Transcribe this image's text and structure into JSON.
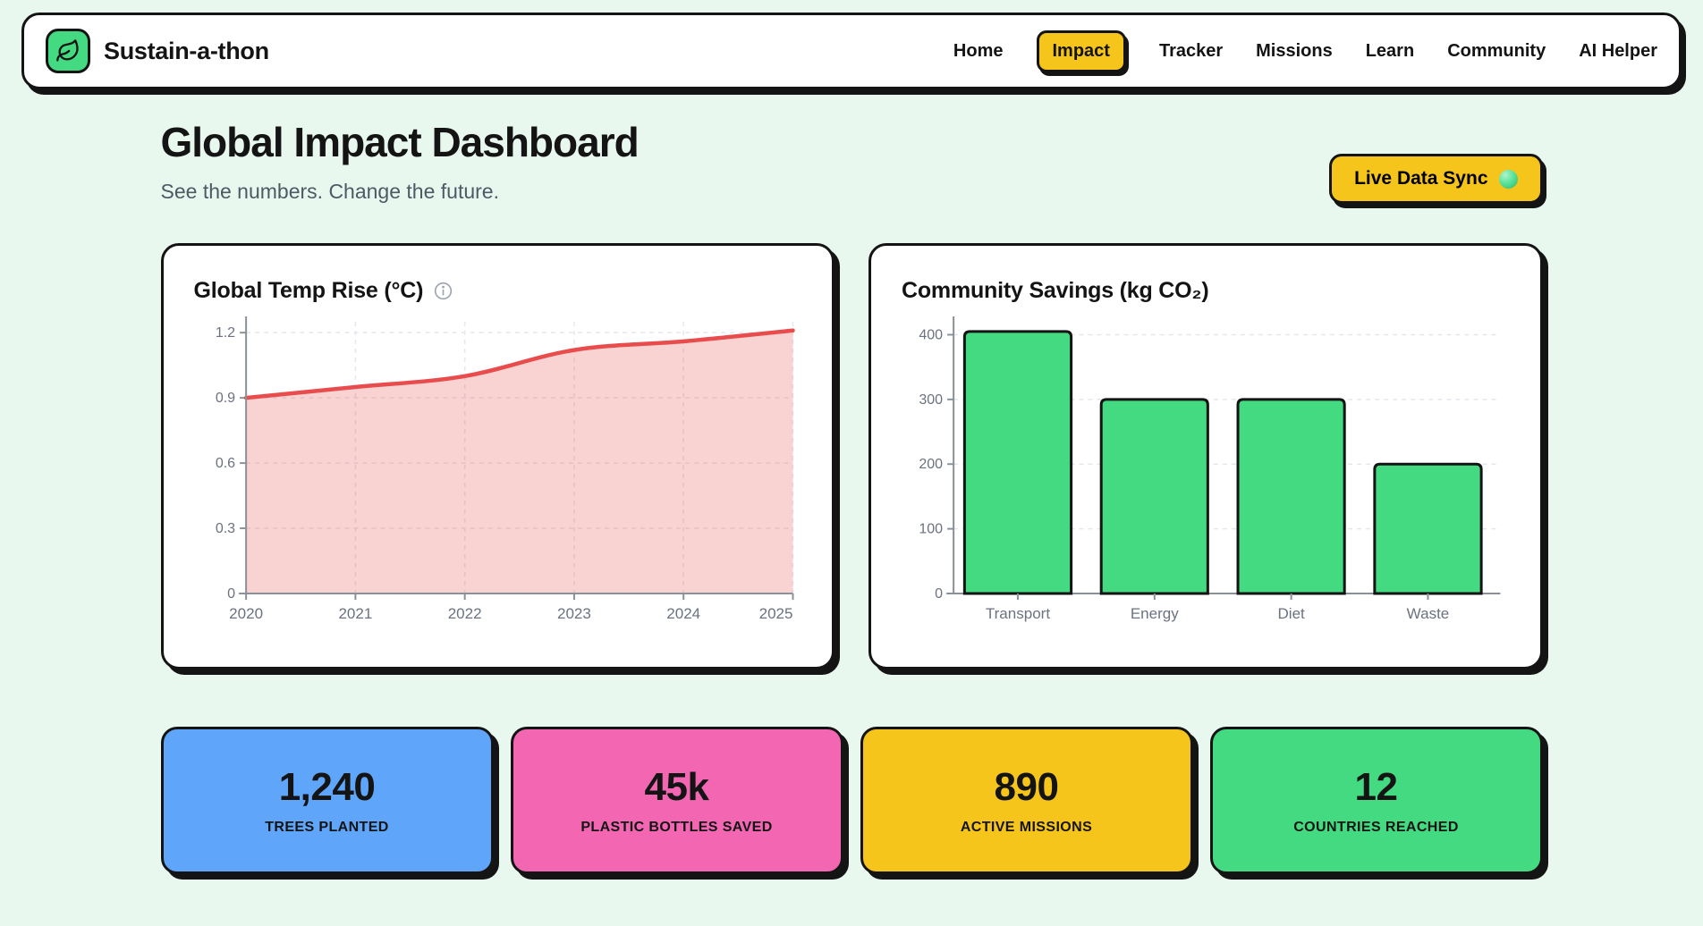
{
  "navbar": {
    "brand": {
      "name": "Sustain-a-thon",
      "logo_icon": "leaf-icon",
      "logo_bg": "#44da82"
    },
    "items": [
      {
        "label": "Home",
        "active": false
      },
      {
        "label": "Impact",
        "active": true
      },
      {
        "label": "Tracker",
        "active": false
      },
      {
        "label": "Missions",
        "active": false
      },
      {
        "label": "Learn",
        "active": false
      },
      {
        "label": "Community",
        "active": false
      },
      {
        "label": "AI Helper",
        "active": false
      }
    ]
  },
  "header": {
    "title": "Global Impact Dashboard",
    "subtitle": "See the numbers. Change the future.",
    "sync_button": {
      "label": "Live Data Sync",
      "status_icon": "green-sphere-icon"
    }
  },
  "chart_data": [
    {
      "type": "area",
      "title": "Global Temp Rise (°C)",
      "has_info_icon": true,
      "x": [
        2020,
        2021,
        2022,
        2023,
        2024,
        2025
      ],
      "values": [
        0.9,
        0.95,
        1.0,
        1.12,
        1.16,
        1.21
      ],
      "ylim": [
        0,
        1.25
      ],
      "yticks": [
        0,
        0.3,
        0.6,
        0.9,
        1.2
      ],
      "xlabel": "",
      "ylabel": "",
      "grid": "dashed-horizontal-and-vertical",
      "legend": "none",
      "line_color": "#e84c4c",
      "fill_color": "rgba(232,76,76,0.25)"
    },
    {
      "type": "bar",
      "title": "Community Savings (kg CO₂)",
      "categories": [
        "Transport",
        "Energy",
        "Diet",
        "Waste"
      ],
      "values": [
        405,
        300,
        300,
        200
      ],
      "ylim": [
        0,
        420
      ],
      "yticks": [
        0,
        100,
        200,
        300,
        400
      ],
      "xlabel": "",
      "ylabel": "",
      "grid": "dashed-horizontal",
      "legend": "none",
      "bar_color": "#44da82",
      "bar_border": "#141414"
    }
  ],
  "stats": [
    {
      "value": "1,240",
      "label": "TREES PLANTED",
      "bg": "#5fa5f9"
    },
    {
      "value": "45k",
      "label": "PLASTIC BOTTLES SAVED",
      "bg": "#f266b2"
    },
    {
      "value": "890",
      "label": "ACTIVE MISSIONS",
      "bg": "#f6c51b"
    },
    {
      "value": "12",
      "label": "COUNTRIES REACHED",
      "bg": "#44da82"
    }
  ],
  "colors": {
    "background": "#e9f8ef",
    "ink": "#141414",
    "accent_yellow": "#f6c51b",
    "green": "#44da82",
    "blue": "#5fa5f9",
    "pink": "#f266b2",
    "red": "#e84c4c",
    "axis_gray": "#8a9199",
    "tick_text": "#6b7280"
  }
}
